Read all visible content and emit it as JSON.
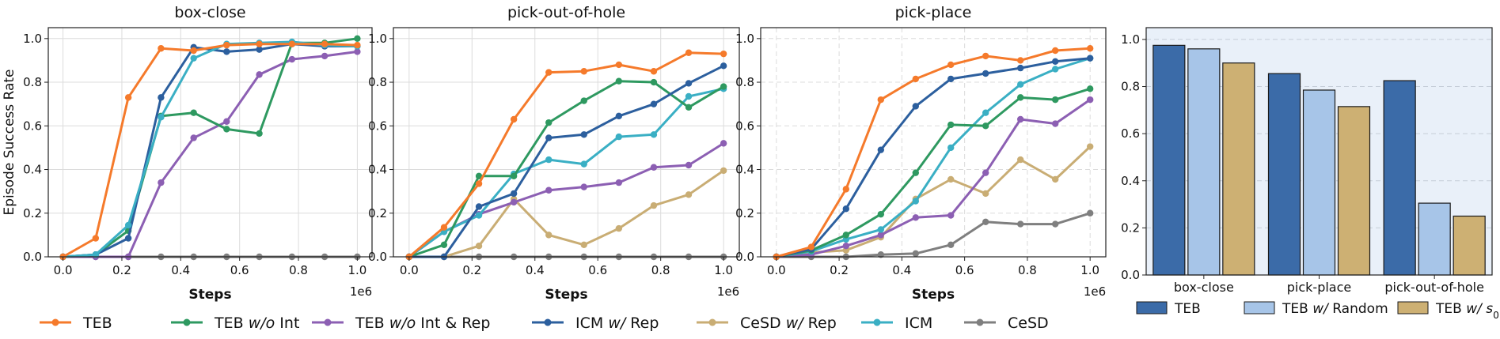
{
  "chart_data": [
    {
      "type": "line",
      "title": "box-close",
      "xlabel": "Steps",
      "ylabel": "Episode Success Rate",
      "x_exponent_label": "1e6",
      "xlim": [
        -0.05,
        1.05
      ],
      "ylim": [
        0,
        1.05
      ],
      "xticks": [
        "0.0",
        "0.2",
        "0.4",
        "0.6",
        "0.8",
        "1.0"
      ],
      "yticks": [
        "0.0",
        "0.2",
        "0.4",
        "0.6",
        "0.8",
        "1.0"
      ],
      "x": [
        0,
        0.111,
        0.222,
        0.333,
        0.444,
        0.556,
        0.667,
        0.778,
        0.889,
        1.0
      ],
      "series": [
        {
          "name": "CeSD",
          "color": "#7f7f7f",
          "values": [
            0,
            0,
            0,
            0,
            0,
            0,
            0,
            0,
            0,
            0
          ]
        },
        {
          "name": "TEB w/o Int & Rep",
          "color": "#8c5fb3",
          "values": [
            0,
            0,
            0,
            0.34,
            0.545,
            0.62,
            0.835,
            0.905,
            0.92,
            0.94
          ]
        },
        {
          "name": "TEB w/o Int",
          "color": "#2e9960",
          "values": [
            0,
            0.01,
            0.12,
            0.645,
            0.66,
            0.585,
            0.565,
            0.98,
            0.98,
            1.0
          ]
        },
        {
          "name": "ICM w/ Rep",
          "color": "#2c5f9e",
          "values": [
            0,
            0.01,
            0.085,
            0.73,
            0.96,
            0.94,
            0.95,
            0.975,
            0.965,
            0.965
          ]
        },
        {
          "name": "ICM",
          "color": "#3aafc4",
          "values": [
            0,
            0.01,
            0.145,
            0.64,
            0.91,
            0.975,
            0.98,
            0.985,
            0.97,
            0.965
          ]
        },
        {
          "name": "TEB",
          "color": "#f57a2b",
          "values": [
            0,
            0.085,
            0.73,
            0.955,
            0.945,
            0.97,
            0.975,
            0.975,
            0.975,
            0.97
          ]
        }
      ]
    },
    {
      "type": "line",
      "title": "pick-out-of-hole",
      "xlabel": "Steps",
      "ylabel": "",
      "x_exponent_label": "1e6",
      "xlim": [
        -0.05,
        1.05
      ],
      "ylim": [
        0,
        1.05
      ],
      "xticks": [
        "0.0",
        "0.2",
        "0.4",
        "0.6",
        "0.8",
        "1.0"
      ],
      "yticks": [
        "0.0",
        "0.2",
        "0.4",
        "0.6",
        "0.8",
        "1.0"
      ],
      "x": [
        0,
        0.111,
        0.222,
        0.333,
        0.444,
        0.556,
        0.667,
        0.778,
        0.889,
        1.0
      ],
      "series": [
        {
          "name": "CeSD",
          "color": "#7f7f7f",
          "values": [
            0,
            0,
            0,
            0,
            0,
            0,
            0,
            0,
            0,
            0
          ]
        },
        {
          "name": "CeSD w/ Rep",
          "color": "#c9ad74",
          "values": [
            0,
            0,
            0.05,
            0.265,
            0.1,
            0.055,
            0.13,
            0.235,
            0.285,
            0.395
          ]
        },
        {
          "name": "TEB w/o Int & Rep",
          "color": "#8c5fb3",
          "values": [
            0,
            0.115,
            0.195,
            0.25,
            0.305,
            0.32,
            0.34,
            0.41,
            0.42,
            0.52
          ]
        },
        {
          "name": "ICM",
          "color": "#3aafc4",
          "values": [
            0,
            0.115,
            0.19,
            0.38,
            0.445,
            0.425,
            0.55,
            0.56,
            0.735,
            0.77
          ]
        },
        {
          "name": "TEB w/o Int",
          "color": "#2e9960",
          "values": [
            0,
            0.055,
            0.37,
            0.37,
            0.615,
            0.715,
            0.805,
            0.8,
            0.685,
            0.78
          ]
        },
        {
          "name": "ICM w/ Rep",
          "color": "#2c5f9e",
          "values": [
            0,
            0,
            0.23,
            0.29,
            0.545,
            0.56,
            0.645,
            0.7,
            0.795,
            0.875
          ]
        },
        {
          "name": "TEB",
          "color": "#f57a2b",
          "values": [
            0,
            0.135,
            0.335,
            0.63,
            0.845,
            0.85,
            0.88,
            0.85,
            0.935,
            0.93
          ]
        }
      ]
    },
    {
      "type": "line",
      "title": "pick-place",
      "xlabel": "Steps",
      "ylabel": "",
      "x_exponent_label": "1e6",
      "xlim": [
        -0.05,
        1.05
      ],
      "ylim": [
        0,
        1.05
      ],
      "xticks": [
        "0.0",
        "0.2",
        "0.4",
        "0.6",
        "0.8",
        "1.0"
      ],
      "yticks": [
        "0.0",
        "0.2",
        "0.4",
        "0.6",
        "0.8",
        "1.0"
      ],
      "x": [
        0,
        0.111,
        0.222,
        0.333,
        0.444,
        0.556,
        0.667,
        0.778,
        0.889,
        1.0
      ],
      "series": [
        {
          "name": "CeSD",
          "color": "#7f7f7f",
          "values": [
            0,
            0,
            0,
            0.01,
            0.015,
            0.055,
            0.16,
            0.15,
            0.15,
            0.2
          ]
        },
        {
          "name": "CeSD w/ Rep",
          "color": "#c9ad74",
          "values": [
            0,
            0.02,
            0.03,
            0.09,
            0.265,
            0.355,
            0.29,
            0.445,
            0.355,
            0.505
          ]
        },
        {
          "name": "TEB w/o Int & Rep",
          "color": "#8c5fb3",
          "values": [
            0,
            0.01,
            0.05,
            0.1,
            0.18,
            0.19,
            0.385,
            0.63,
            0.61,
            0.72
          ]
        },
        {
          "name": "ICM",
          "color": "#3aafc4",
          "values": [
            0,
            0.025,
            0.08,
            0.125,
            0.255,
            0.5,
            0.66,
            0.79,
            0.86,
            0.91
          ]
        },
        {
          "name": "TEB w/o Int",
          "color": "#2e9960",
          "values": [
            0,
            0.03,
            0.1,
            0.195,
            0.385,
            0.605,
            0.6,
            0.73,
            0.72,
            0.77
          ]
        },
        {
          "name": "ICM w/ Rep",
          "color": "#2c5f9e",
          "values": [
            0,
            0.035,
            0.22,
            0.49,
            0.69,
            0.815,
            0.84,
            0.865,
            0.895,
            0.91
          ]
        },
        {
          "name": "TEB",
          "color": "#f57a2b",
          "values": [
            0,
            0.045,
            0.31,
            0.72,
            0.815,
            0.88,
            0.92,
            0.9,
            0.945,
            0.955
          ]
        }
      ]
    },
    {
      "type": "bar",
      "title": "",
      "categories": [
        "box-close",
        "pick-place",
        "pick-out-of-hole"
      ],
      "ylim": [
        0,
        1.05
      ],
      "yticks": [
        "0.0",
        "0.2",
        "0.4",
        "0.6",
        "0.8",
        "1.0"
      ],
      "series": [
        {
          "name": "TEB",
          "color": "#3b6ba8",
          "values": [
            0.975,
            0.855,
            0.825
          ]
        },
        {
          "name": "TEB w/ Random",
          "color": "#a7c5e8",
          "values": [
            0.96,
            0.785,
            0.305
          ]
        },
        {
          "name": "TEB w/ s0",
          "color": "#cdb073",
          "values": [
            0.9,
            0.715,
            0.25
          ]
        }
      ]
    }
  ],
  "legend_main": [
    {
      "name": "TEB",
      "color": "#f57a2b",
      "parts": [
        {
          "t": "TEB",
          "i": false
        }
      ]
    },
    {
      "name": "TEB w/o Int",
      "color": "#2e9960",
      "parts": [
        {
          "t": "TEB ",
          "i": false
        },
        {
          "t": "w/o",
          "i": true
        },
        {
          "t": " Int",
          "i": false
        }
      ]
    },
    {
      "name": "TEB w/o Int & Rep",
      "color": "#8c5fb3",
      "parts": [
        {
          "t": "TEB ",
          "i": false
        },
        {
          "t": "w/o",
          "i": true
        },
        {
          "t": " Int & Rep",
          "i": false
        }
      ]
    },
    {
      "name": "ICM w/ Rep",
      "color": "#2c5f9e",
      "parts": [
        {
          "t": "ICM ",
          "i": false
        },
        {
          "t": "w/",
          "i": true
        },
        {
          "t": " Rep",
          "i": false
        }
      ]
    },
    {
      "name": "CeSD w/ Rep",
      "color": "#c9ad74",
      "parts": [
        {
          "t": "CeSD ",
          "i": false
        },
        {
          "t": "w/",
          "i": true
        },
        {
          "t": " Rep",
          "i": false
        }
      ]
    },
    {
      "name": "ICM",
      "color": "#3aafc4",
      "parts": [
        {
          "t": "ICM",
          "i": false
        }
      ]
    },
    {
      "name": "CeSD",
      "color": "#7f7f7f",
      "parts": [
        {
          "t": "CeSD",
          "i": false
        }
      ]
    }
  ],
  "legend_bar": [
    {
      "name": "TEB",
      "color": "#3b6ba8",
      "parts": [
        {
          "t": "TEB",
          "i": false
        }
      ]
    },
    {
      "name": "TEB w/ Random",
      "color": "#a7c5e8",
      "parts": [
        {
          "t": "TEB ",
          "i": false
        },
        {
          "t": "w/",
          "i": true
        },
        {
          "t": " Random",
          "i": false
        }
      ]
    },
    {
      "name": "TEB w/ s0",
      "color": "#cdb073",
      "parts": [
        {
          "t": "TEB ",
          "i": false
        },
        {
          "t": "w/",
          "i": true
        },
        {
          "t": " s",
          "i": true
        },
        {
          "t": "0",
          "i": false,
          "sub": true
        }
      ]
    }
  ]
}
